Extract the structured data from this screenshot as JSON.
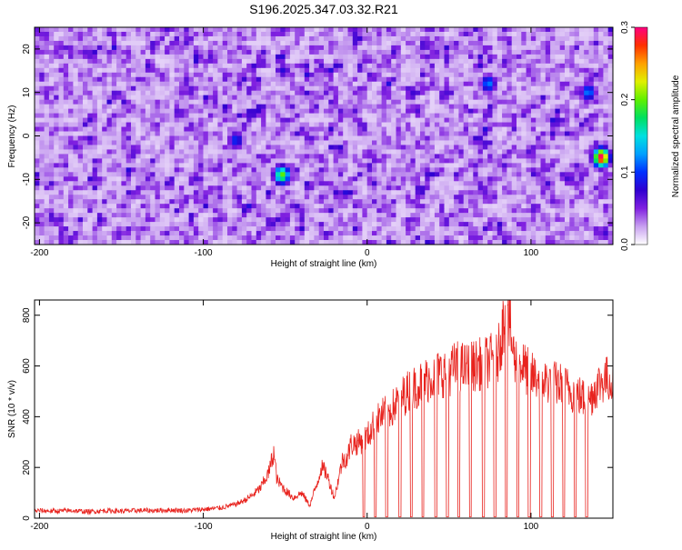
{
  "title": "S196.2025.347.03.32.R21",
  "chart_data": [
    {
      "type": "heatmap",
      "xlabel": "Height of straight line (km)",
      "ylabel": "Frequency (Hz)",
      "xlim": [
        -203,
        150
      ],
      "ylim": [
        -25,
        25
      ],
      "xticks": [
        -200,
        -100,
        0,
        100
      ],
      "yticks": [
        -20,
        -10,
        0,
        10,
        20
      ],
      "colorbar": {
        "label": "Normalized spectral amplitude",
        "range": [
          0.0,
          0.3
        ],
        "ticks": [
          "0.0",
          "0.1",
          "0.2",
          "0.3"
        ],
        "colors": [
          "#ffffff",
          "#c8a0f0",
          "#8020e0",
          "#3000d0",
          "#0030ff",
          "#00a0ff",
          "#00e0e0",
          "#00e060",
          "#60f000",
          "#e0f000",
          "#ffa000",
          "#ff3000",
          "#ff0080"
        ]
      },
      "hotspots": [
        {
          "x": -52,
          "y": -9,
          "value": 0.2
        },
        {
          "x": 143,
          "y": -5,
          "value": 0.3
        },
        {
          "x": 135,
          "y": 10,
          "value": 0.12
        },
        {
          "x": 74,
          "y": 12,
          "value": 0.12
        },
        {
          "x": -80,
          "y": -1,
          "value": 0.1
        }
      ]
    },
    {
      "type": "line",
      "xlabel": "Height of straight line (km)",
      "ylabel": "SNR (10 * v/v)",
      "xlim": [
        -203,
        150
      ],
      "ylim": [
        0,
        860
      ],
      "xticks": [
        -200,
        -100,
        0,
        100
      ],
      "yticks": [
        0,
        200,
        400,
        600,
        800
      ],
      "color": "#e8231e",
      "series": [
        {
          "x": [
            -203,
            -190,
            -180,
            -170,
            -160,
            -150,
            -140,
            -130,
            -120,
            -110,
            -100,
            -90,
            -80,
            -75,
            -70,
            -65,
            -60,
            -57,
            -55,
            -50,
            -45,
            -40,
            -35,
            -30,
            -28,
            -25,
            -20,
            -15,
            -12,
            -10,
            -5,
            0,
            5,
            10,
            15,
            20,
            25,
            30,
            35,
            40,
            45,
            50,
            55,
            60,
            65,
            70,
            75,
            80,
            85,
            90,
            95,
            100,
            105,
            110,
            115,
            120,
            125,
            130,
            135,
            140,
            145,
            150
          ],
          "y": [
            30,
            28,
            30,
            25,
            30,
            28,
            30,
            30,
            32,
            30,
            35,
            40,
            55,
            70,
            90,
            120,
            180,
            260,
            150,
            110,
            80,
            100,
            50,
            150,
            200,
            180,
            80,
            230,
            240,
            290,
            300,
            320,
            380,
            410,
            430,
            470,
            500,
            520,
            540,
            560,
            570,
            580,
            600,
            590,
            600,
            610,
            620,
            640,
            840,
            620,
            600,
            560,
            550,
            540,
            530,
            520,
            500,
            480,
            460,
            520,
            550,
            540
          ]
        }
      ],
      "dropouts_x": [
        -2,
        5,
        12,
        20,
        27,
        34,
        42,
        49,
        56,
        63,
        71,
        78,
        85,
        92,
        99,
        106,
        113,
        120,
        127,
        134
      ]
    }
  ]
}
